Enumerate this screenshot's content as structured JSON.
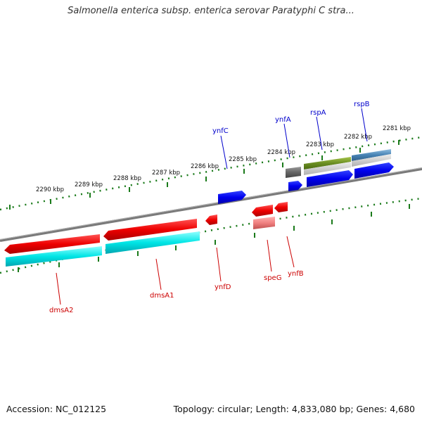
{
  "title": "Salmonella enterica subsp. enterica serovar Paratyphi C stra...",
  "footer": {
    "accession": "Accession: NC_012125",
    "summary": "Topology: circular; Length: 4,833,080 bp; Genes: 4,680"
  },
  "kbp_labels": [
    "2290 kbp",
    "2289 kbp",
    "2288 kbp",
    "2287 kbp",
    "2286 kbp",
    "2285 kbp",
    "2284 kbp",
    "2283 kbp",
    "2282 kbp",
    "2281 kbp"
  ],
  "colors": {
    "forward_label": "#0000aa",
    "reverse_label": "#cc0000",
    "tick": "#1a7a1a",
    "backbone": "#7a7a7a"
  },
  "genes_top": [
    {
      "name": "ynfC",
      "color": "#0000cc"
    },
    {
      "name": "ynfA",
      "color": "#0000cc"
    },
    {
      "name": "rspA",
      "color": "#0000cc"
    },
    {
      "name": "rspB",
      "color": "#0000cc"
    }
  ],
  "genes_bottom": [
    {
      "name": "dmsA2",
      "color": "#cc0000"
    },
    {
      "name": "dmsA1",
      "color": "#cc0000"
    },
    {
      "name": "ynfD",
      "color": "#cc0000"
    },
    {
      "name": "speG",
      "color": "#cc0000"
    },
    {
      "name": "ynfB",
      "color": "#cc0000"
    }
  ]
}
